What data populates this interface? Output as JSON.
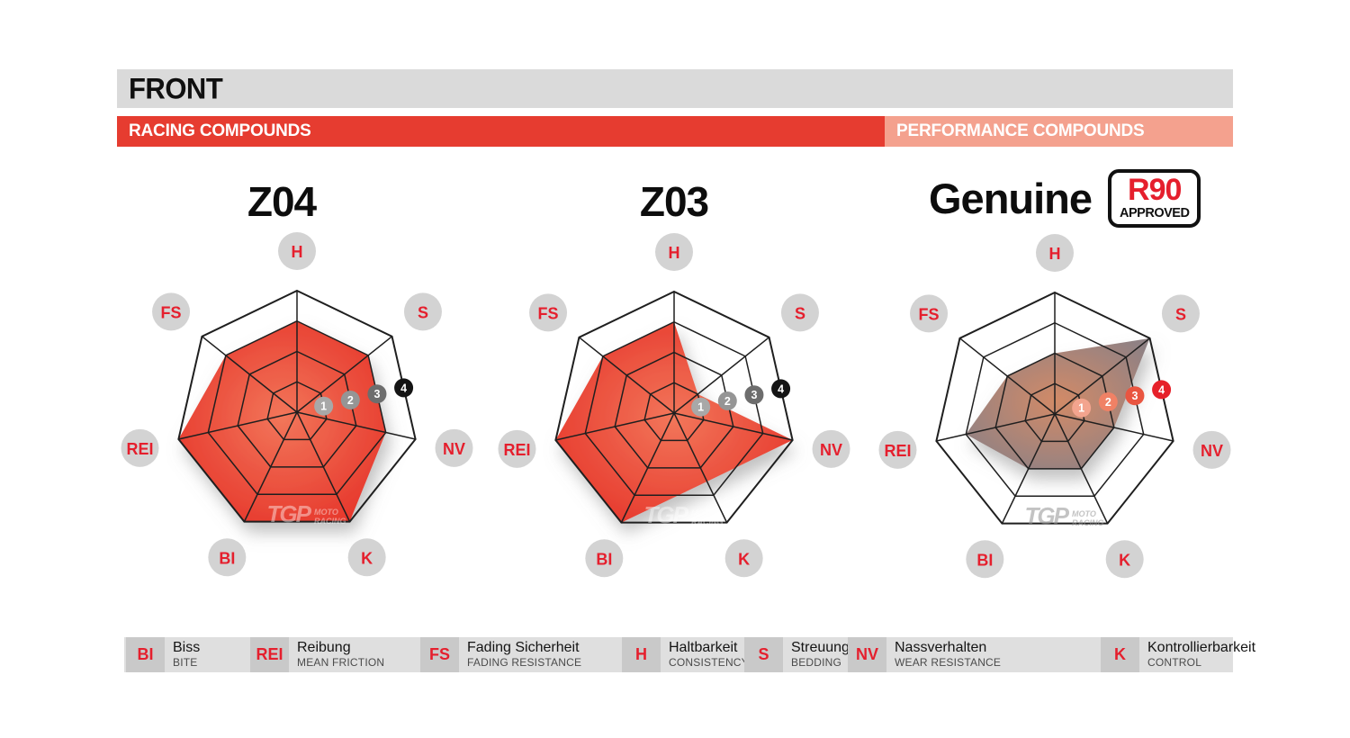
{
  "header": {
    "title": "FRONT",
    "racing_banner": "RACING COMPOUNDS",
    "performance_banner": "PERFORMANCE COMPOUNDS",
    "header_bg": "#dadada",
    "racing_color": "#e63c30",
    "performance_color": "#f4a18e"
  },
  "scale_labels": [
    "1",
    "2",
    "3",
    "4"
  ],
  "tgp_watermark": {
    "logo": "TGP",
    "sub1": "MOTO",
    "sub2": "RACING"
  },
  "axis_label_style": {
    "circle_color": "#d3d3d3",
    "text_color": "#e51f2d"
  },
  "grid_color": "#1f1f1f",
  "chart_data": [
    {
      "type": "radar",
      "title": "Z04",
      "axes": [
        "H",
        "S",
        "NV",
        "K",
        "BI",
        "REI",
        "FS"
      ],
      "values": [
        3,
        3,
        3,
        4,
        4,
        4,
        3
      ],
      "scale_max": 4,
      "rings": 4,
      "fill_center": "#f2765a",
      "fill_edge": "#e6352a",
      "marker_colors": [
        "#a8a8a8",
        "#959595",
        "#6d6d6d",
        "#141414"
      ],
      "watermark_color": "rgba(255,255,255,0.42)"
    },
    {
      "type": "radar",
      "title": "Z03",
      "axes": [
        "H",
        "S",
        "NV",
        "K",
        "BI",
        "REI",
        "FS"
      ],
      "values": [
        3,
        1,
        4,
        2.5,
        4,
        4,
        3
      ],
      "scale_max": 4,
      "rings": 4,
      "fill_center": "#f2765a",
      "fill_edge": "#e6352a",
      "marker_colors": [
        "#a8a8a8",
        "#959595",
        "#6d6d6d",
        "#141414"
      ],
      "watermark_color": "rgba(255,255,255,0.42)"
    },
    {
      "type": "radar",
      "title": "Genuine",
      "badge": {
        "line1": "R90",
        "line2": "APPROVED",
        "line1_color": "#e51f2d"
      },
      "axes": [
        "H",
        "S",
        "NV",
        "K",
        "BI",
        "REI",
        "FS"
      ],
      "values": [
        2,
        4,
        2,
        2,
        2,
        3,
        2
      ],
      "scale_max": 4,
      "rings": 4,
      "fill_center": "#d28a67",
      "fill_edge": "#8f8184",
      "marker_colors": [
        "#f3a48e",
        "#f08165",
        "#e95540",
        "#e6212a"
      ],
      "watermark_color": "rgba(145,145,145,0.55)"
    }
  ],
  "legend": [
    {
      "abbr": "BI",
      "term": "Biss",
      "translation": "BITE"
    },
    {
      "abbr": "REI",
      "term": "Reibung",
      "translation": "MEAN FRICTION"
    },
    {
      "abbr": "FS",
      "term": "Fading Sicherheit",
      "translation": "FADING RESISTANCE"
    },
    {
      "abbr": "H",
      "term": "Haltbarkeit",
      "translation": "CONSISTENCY"
    },
    {
      "abbr": "S",
      "term": "Streuung",
      "translation": "BEDDING"
    },
    {
      "abbr": "NV",
      "term": "Nassverhalten",
      "translation": "WEAR RESISTANCE"
    },
    {
      "abbr": "K",
      "term": "Kontrollierbarkeit",
      "translation": "CONTROL"
    }
  ]
}
